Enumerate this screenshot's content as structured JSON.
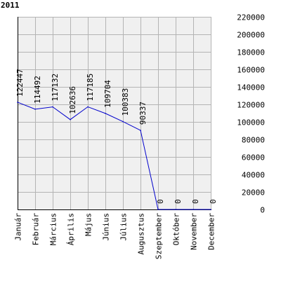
{
  "chart_data": {
    "type": "line",
    "title": "2011",
    "categories": [
      "Január",
      "Február",
      "Március",
      "Április",
      "Május",
      "Június",
      "Július",
      "Augusztus",
      "Szeptember",
      "Október",
      "November",
      "December"
    ],
    "values": [
      122447,
      114492,
      117132,
      102636,
      117185,
      109704,
      100383,
      90337,
      0,
      0,
      0,
      0
    ],
    "data_labels": [
      "122447",
      "114492",
      "117132",
      "102636",
      "117185",
      "109704",
      "100383",
      "90337",
      "0",
      "0",
      "0",
      "0"
    ],
    "y_ticks": [
      "0",
      "20000",
      "40000",
      "60000",
      "80000",
      "100000",
      "120000",
      "140000",
      "160000",
      "180000",
      "200000",
      "220000"
    ],
    "ylim": [
      0,
      220000
    ],
    "xlabel": "",
    "ylabel": "",
    "grid": true,
    "y_axis_side": "right",
    "colors": {
      "plot_background": "#f0f0f0",
      "grid": "#b4b4b4",
      "line": "#0000cc",
      "axis": "#000000",
      "text": "#000000"
    }
  }
}
